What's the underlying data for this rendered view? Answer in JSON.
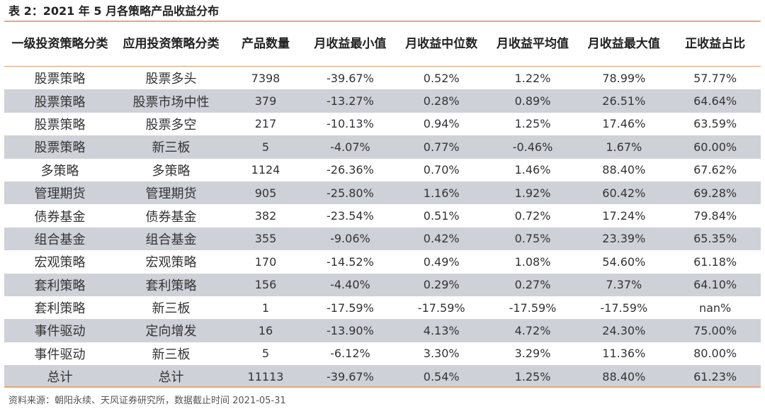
{
  "title": "表 2：2021 年 5 月各策略产品收益分布",
  "headers": [
    "一级投资策略分类",
    "应用投资策略分类",
    "产品数量",
    "月收益最小值",
    "月收益中位数",
    "月收益平均值",
    "月收益最大值",
    "正收益占比"
  ],
  "rows": [
    [
      "股票策略",
      "股票多头",
      "7398",
      "-39.67%",
      "0.52%",
      "1.22%",
      "78.99%",
      "57.77%"
    ],
    [
      "股票策略",
      "股票市场中性",
      "379",
      "-13.27%",
      "0.28%",
      "0.89%",
      "26.51%",
      "64.64%"
    ],
    [
      "股票策略",
      "股票多空",
      "217",
      "-10.13%",
      "0.94%",
      "1.25%",
      "17.46%",
      "63.59%"
    ],
    [
      "股票策略",
      "新三板",
      "5",
      "-4.07%",
      "0.77%",
      "-0.46%",
      "1.67%",
      "60.00%"
    ],
    [
      "多策略",
      "多策略",
      "1124",
      "-26.36%",
      "0.70%",
      "1.46%",
      "88.40%",
      "67.62%"
    ],
    [
      "管理期货",
      "管理期货",
      "905",
      "-25.80%",
      "1.16%",
      "1.92%",
      "60.42%",
      "69.28%"
    ],
    [
      "债券基金",
      "债券基金",
      "382",
      "-23.54%",
      "0.51%",
      "0.72%",
      "17.24%",
      "79.84%"
    ],
    [
      "组合基金",
      "组合基金",
      "355",
      "-9.06%",
      "0.42%",
      "0.75%",
      "23.39%",
      "65.35%"
    ],
    [
      "宏观策略",
      "宏观策略",
      "170",
      "-14.52%",
      "0.49%",
      "1.08%",
      "54.60%",
      "61.18%"
    ],
    [
      "套利策略",
      "套利策略",
      "156",
      "-4.40%",
      "0.29%",
      "0.27%",
      "7.37%",
      "64.10%"
    ],
    [
      "套利策略",
      "新三板",
      "1",
      "-17.59%",
      "-17.59%",
      "-17.59%",
      "-17.59%",
      "nan%"
    ],
    [
      "事件驱动",
      "定向增发",
      "16",
      "-13.90%",
      "4.13%",
      "4.72%",
      "24.30%",
      "75.00%"
    ],
    [
      "事件驱动",
      "新三板",
      "5",
      "-6.12%",
      "3.30%",
      "3.29%",
      "11.36%",
      "80.00%"
    ],
    [
      "总计",
      "总计",
      "11113",
      "-39.67%",
      "0.54%",
      "1.25%",
      "88.40%",
      "61.23%"
    ]
  ],
  "source": "资料来源：朝阳永续、天风证券研究所，数据截止时间 2021-05-31",
  "colors": {
    "accent_rule": "#e8a77a",
    "header_rule": "#d99a6c",
    "row_shade": "#cfd1d8"
  }
}
